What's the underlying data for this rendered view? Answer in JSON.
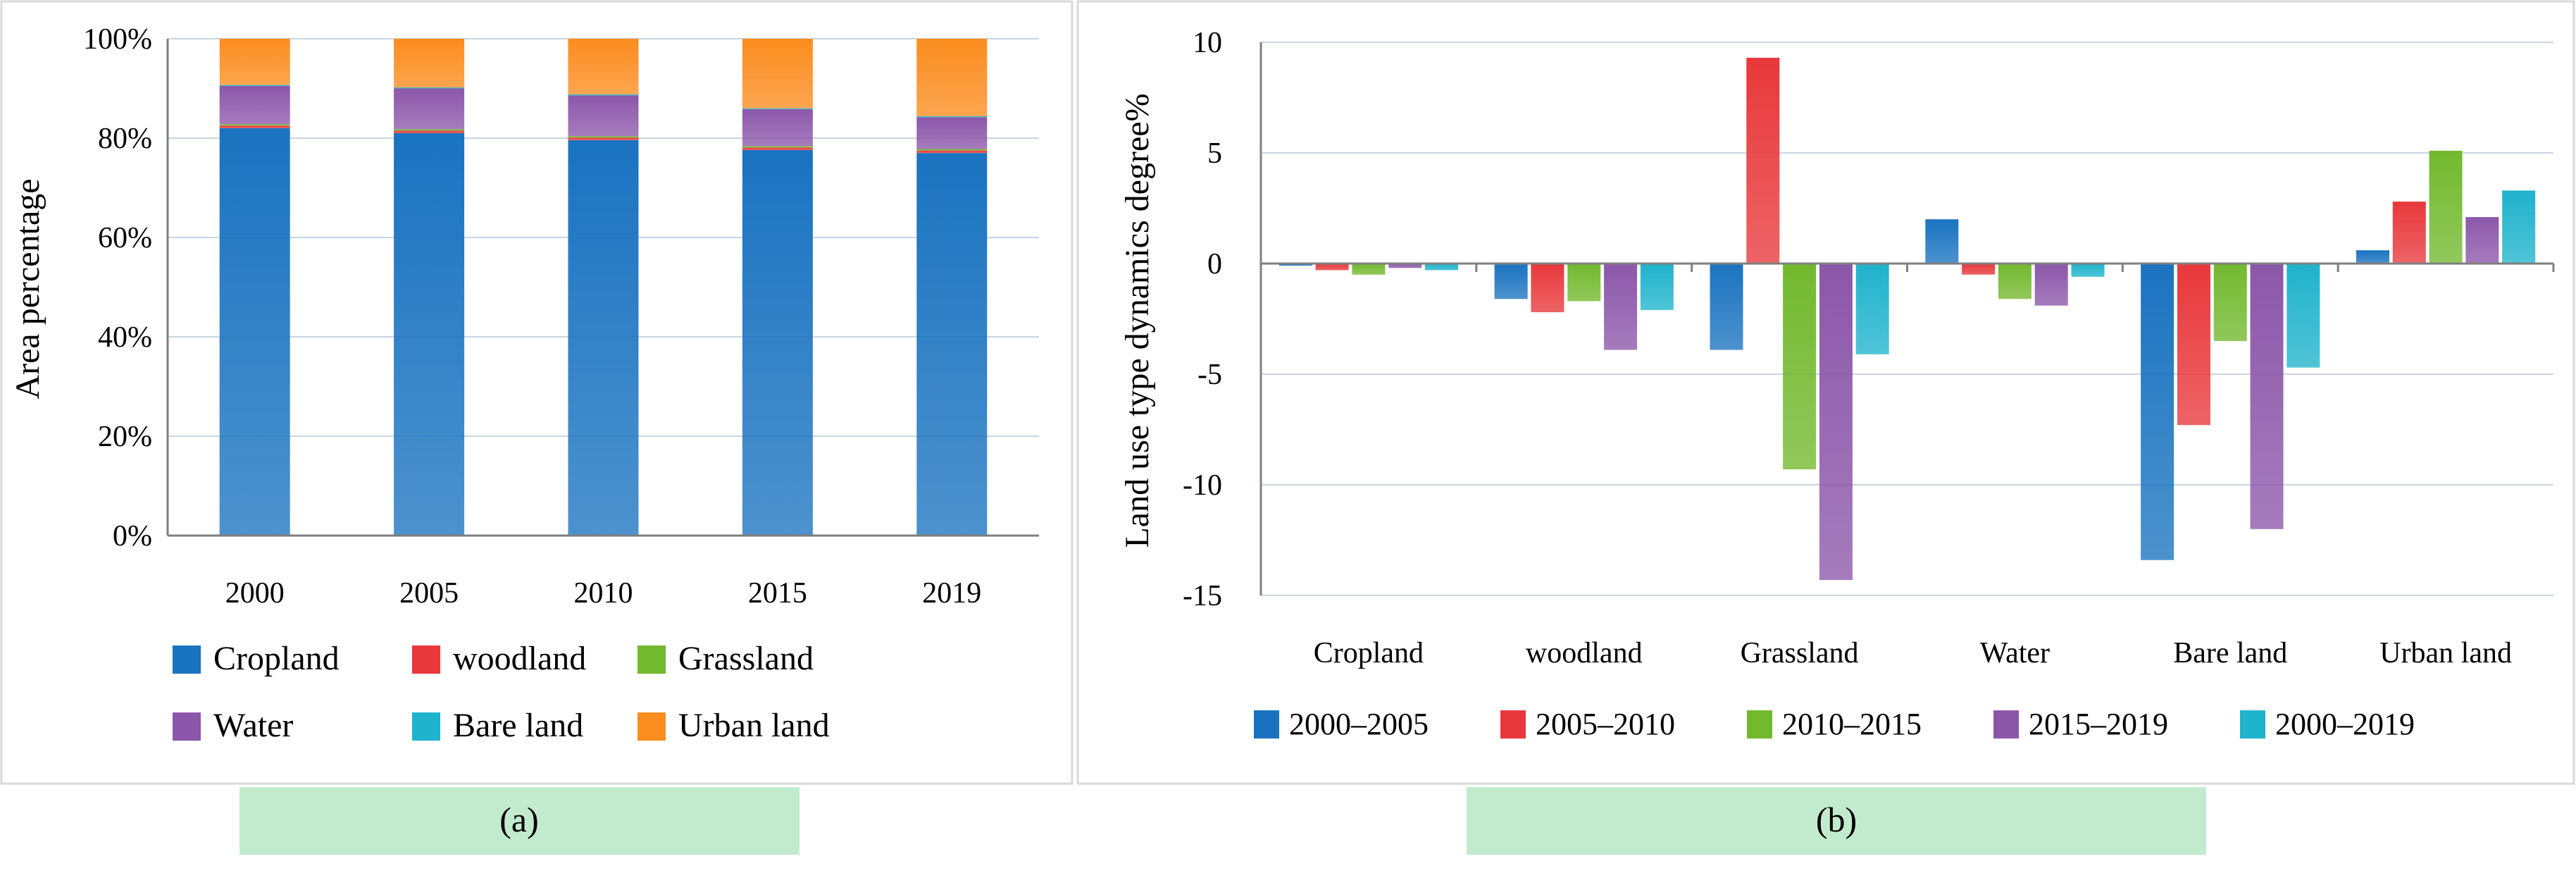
{
  "chart_data": [
    {
      "id": "a",
      "type": "bar",
      "stacked": true,
      "caption": "(a)",
      "xlabel": "",
      "ylabel": "Area percentage",
      "ylim": [
        0,
        100
      ],
      "yticks": [
        0,
        20,
        40,
        60,
        80,
        100
      ],
      "ytick_labels": [
        "0%",
        "20%",
        "40%",
        "60%",
        "80%",
        "100%"
      ],
      "categories": [
        "2000",
        "2005",
        "2010",
        "2015",
        "2019"
      ],
      "series": [
        {
          "name": "Cropland",
          "color": "#1a73c0",
          "values": [
            82.0,
            81.0,
            79.6,
            77.6,
            77.0
          ]
        },
        {
          "name": "woodland",
          "color": "#e8383b",
          "values": [
            0.5,
            0.5,
            0.5,
            0.5,
            0.5
          ]
        },
        {
          "name": "Grassland",
          "color": "#72b92e",
          "values": [
            0.3,
            0.3,
            0.3,
            0.3,
            0.3
          ]
        },
        {
          "name": "Water",
          "color": "#8c57aa",
          "values": [
            7.7,
            8.2,
            8.2,
            7.4,
            6.4
          ]
        },
        {
          "name": "Bare land",
          "color": "#1fb3cc",
          "values": [
            0.2,
            0.2,
            0.2,
            0.2,
            0.2
          ]
        },
        {
          "name": "Urban land",
          "color": "#fb8c1e",
          "values": [
            9.3,
            9.8,
            11.2,
            14.0,
            15.6
          ]
        }
      ],
      "legend_position": "bottom"
    },
    {
      "id": "b",
      "type": "bar",
      "stacked": false,
      "caption": "(b)",
      "xlabel": "",
      "ylabel": "Land use type dynamics degree%",
      "ylim": [
        -15,
        10
      ],
      "yticks": [
        10,
        5,
        0,
        -5,
        -10,
        -15
      ],
      "ytick_labels": [
        "10",
        "5",
        "0",
        "-5",
        "-10",
        "-15"
      ],
      "categories": [
        "Cropland",
        "woodland",
        "Grassland",
        "Water",
        "Bare land",
        "Urban land"
      ],
      "series": [
        {
          "name": "2000–2005",
          "color": "#1a73c0",
          "values": [
            -0.1,
            -1.6,
            -3.9,
            2.0,
            -13.4,
            0.6
          ]
        },
        {
          "name": "2005–2010",
          "color": "#e8383b",
          "values": [
            -0.3,
            -2.2,
            9.3,
            -0.5,
            -7.3,
            2.8
          ]
        },
        {
          "name": "2010–2015",
          "color": "#72b92e",
          "values": [
            -0.5,
            -1.7,
            -9.3,
            -1.6,
            -3.5,
            5.1
          ]
        },
        {
          "name": "2015–2019",
          "color": "#8c57aa",
          "values": [
            -0.2,
            -3.9,
            -14.3,
            -1.9,
            -12.0,
            2.1
          ]
        },
        {
          "name": "2000–2019",
          "color": "#1fb3cc",
          "values": [
            -0.3,
            -2.1,
            -4.1,
            -0.6,
            -4.7,
            3.3
          ]
        }
      ],
      "legend_position": "bottom"
    }
  ],
  "colors": {
    "caption_bar": "#c2ebce",
    "grid": "#c8d6e3",
    "axis": "#7f7f7f",
    "frame": "#d9d9d9"
  }
}
